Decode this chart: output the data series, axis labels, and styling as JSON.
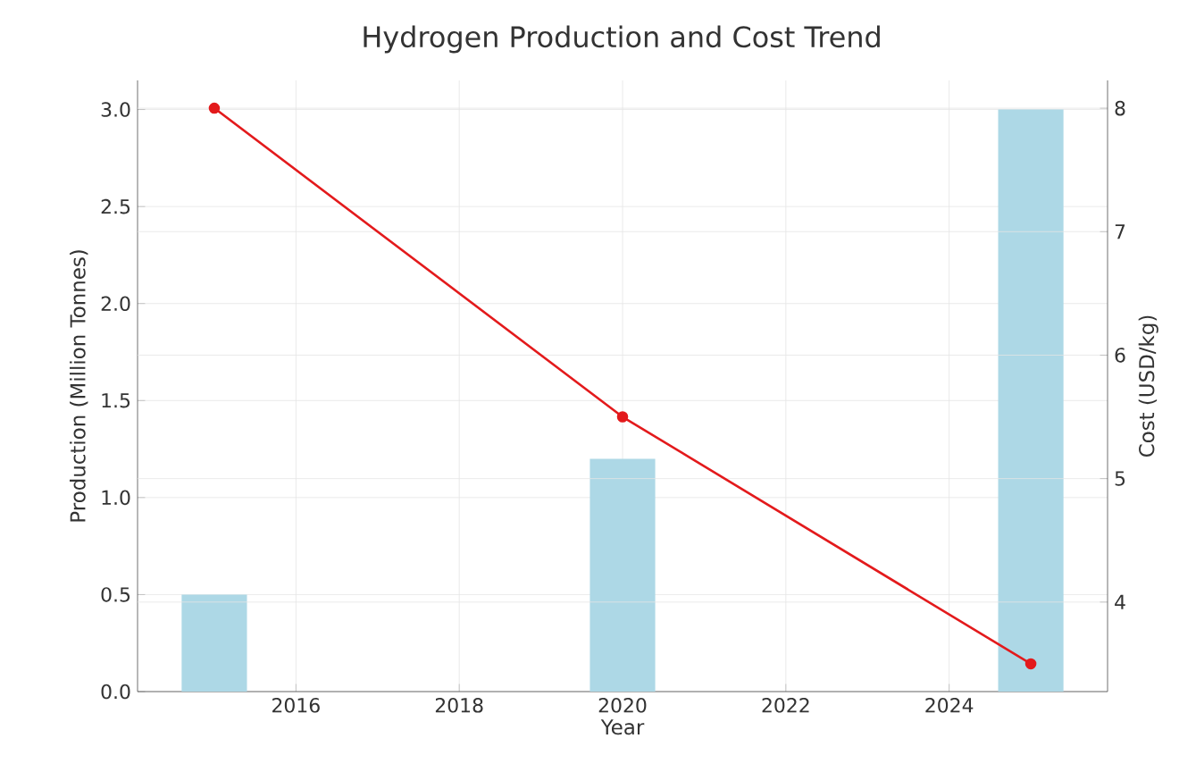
{
  "chart_data": {
    "type": "bar",
    "title": "Hydrogen Production and Cost Trend",
    "xlabel": "Year",
    "ylabel": "Production (Million Tonnes)",
    "y2label": "Cost (USD/kg)",
    "x": [
      2015,
      2020,
      2025
    ],
    "series": [
      {
        "color": "#add8e6",
        "values": [
          0.5,
          1.2,
          3.0
        ]
      },
      {
        "type": "line",
        "axis": "y2",
        "color": "#e31a1c",
        "values": [
          8,
          5.5,
          3.5
        ]
      }
    ],
    "marker": "circle",
    "grid": true,
    "xlim": [
      2014.06,
      2025.94
    ],
    "xticks": [
      2016,
      2018,
      2020,
      2022,
      2024
    ],
    "ylim": [
      0,
      3.15
    ],
    "yticks": [
      {
        "value": 0,
        "label": "0.0"
      },
      0.5,
      {
        "value": 1,
        "label": "1.0"
      },
      1.5,
      {
        "value": 2,
        "label": "2.0"
      },
      2.5,
      {
        "value": 3,
        "label": "3.0"
      }
    ],
    "y2lim": [
      3.275,
      8.225
    ],
    "y2ticks": [
      4,
      5,
      6,
      7,
      8
    ]
  }
}
